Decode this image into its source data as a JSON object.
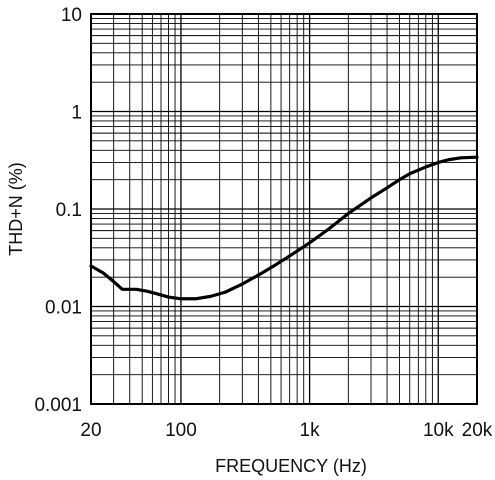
{
  "chart_data": {
    "type": "line",
    "title": "",
    "xlabel": "FREQUENCY (Hz)",
    "ylabel": "THD+N (%)",
    "x_scale": "log",
    "y_scale": "log",
    "xlim": [
      20,
      20000
    ],
    "ylim": [
      0.001,
      10
    ],
    "grid": true,
    "x_ticks": [
      {
        "value": 20,
        "label": "20"
      },
      {
        "value": 100,
        "label": "100"
      },
      {
        "value": 1000,
        "label": "1k"
      },
      {
        "value": 10000,
        "label": "10k"
      },
      {
        "value": 20000,
        "label": "20k"
      }
    ],
    "y_ticks": [
      {
        "value": 10,
        "label": "10"
      },
      {
        "value": 1,
        "label": "1"
      },
      {
        "value": 0.1,
        "label": "0.1"
      },
      {
        "value": 0.01,
        "label": "0.01"
      },
      {
        "value": 0.001,
        "label": "0.001"
      }
    ],
    "series": [
      {
        "name": "",
        "color": "#000000",
        "points": [
          [
            20,
            0.026
          ],
          [
            25,
            0.022
          ],
          [
            30,
            0.018
          ],
          [
            35,
            0.015
          ],
          [
            45,
            0.015
          ],
          [
            55,
            0.0143
          ],
          [
            65,
            0.0135
          ],
          [
            80,
            0.0125
          ],
          [
            100,
            0.012
          ],
          [
            130,
            0.012
          ],
          [
            170,
            0.0127
          ],
          [
            220,
            0.014
          ],
          [
            300,
            0.017
          ],
          [
            400,
            0.021
          ],
          [
            550,
            0.027
          ],
          [
            700,
            0.033
          ],
          [
            1000,
            0.045
          ],
          [
            1400,
            0.062
          ],
          [
            2000,
            0.09
          ],
          [
            3000,
            0.13
          ],
          [
            4000,
            0.165
          ],
          [
            5000,
            0.2
          ],
          [
            6000,
            0.23
          ],
          [
            8000,
            0.27
          ],
          [
            10000,
            0.3
          ],
          [
            12000,
            0.32
          ],
          [
            15000,
            0.335
          ],
          [
            20000,
            0.34
          ]
        ]
      }
    ]
  }
}
